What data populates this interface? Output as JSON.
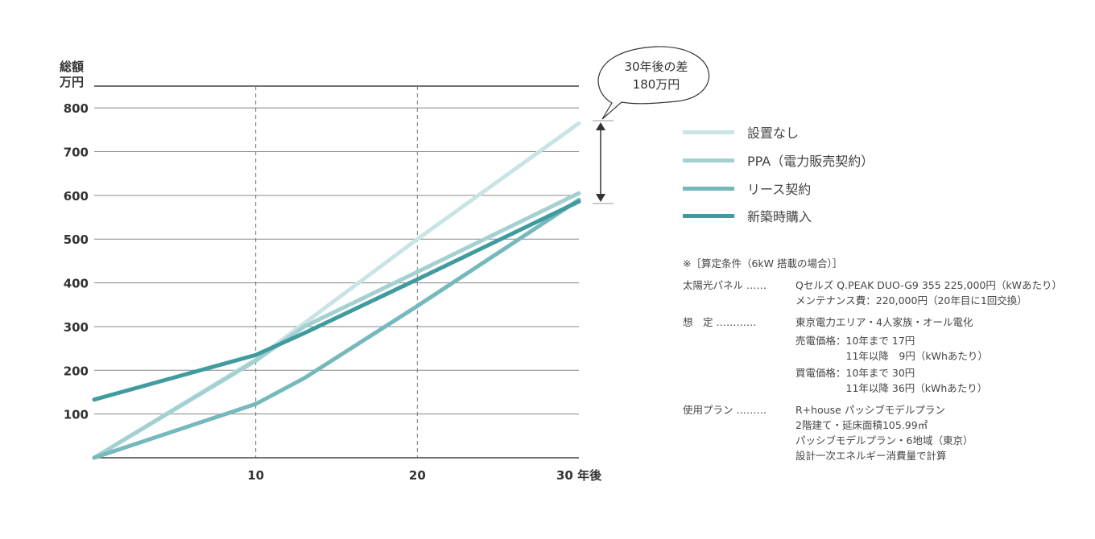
{
  "chart_data": {
    "type": "line",
    "ylabel": "総額\n万円",
    "ylabel_lines": [
      "総額",
      "万円"
    ],
    "xlabel_suffix": "年後",
    "ylim": [
      0,
      850
    ],
    "xlim": [
      0,
      30
    ],
    "yticks": [
      100,
      200,
      300,
      400,
      500,
      600,
      700,
      800
    ],
    "xticks": [
      {
        "v": 10,
        "label": "10"
      },
      {
        "v": 20,
        "label": "20"
      },
      {
        "v": 30,
        "label": "30"
      }
    ],
    "grid": "horizontal",
    "legend_position": "right",
    "series": [
      {
        "name": "設置なし",
        "color": "#c9e4e4",
        "points": [
          [
            0,
            0
          ],
          [
            10,
            225
          ],
          [
            20,
            500
          ],
          [
            30,
            765
          ]
        ]
      },
      {
        "name": "PPA（電力販売契約）",
        "color": "#a4d0d2",
        "points": [
          [
            0,
            0
          ],
          [
            10,
            222
          ],
          [
            13,
            300
          ],
          [
            20,
            425
          ],
          [
            30,
            605
          ]
        ]
      },
      {
        "name": "リース契約",
        "color": "#76b9bc",
        "points": [
          [
            0,
            0
          ],
          [
            10,
            123
          ],
          [
            13,
            182
          ],
          [
            20,
            347
          ],
          [
            30,
            590
          ]
        ]
      },
      {
        "name": "新築時購入",
        "color": "#3f9b9e",
        "points": [
          [
            0,
            133
          ],
          [
            10,
            235
          ],
          [
            13,
            285
          ],
          [
            20,
            408
          ],
          [
            30,
            586
          ]
        ]
      }
    ],
    "annotation": {
      "lines": [
        "30年後の差",
        "180万円"
      ],
      "from": 765,
      "to": 586
    }
  },
  "notes": {
    "title": "※［算定条件（6kW 搭載の場合）］",
    "rows": [
      {
        "label": "太陽光パネル",
        "dots": "……",
        "lines": [
          "Qセルズ Q.PEAK DUO-G9 355  225,000円（kWあたり）",
          "メンテナンス費：220,000円（20年目に1回交換）"
        ]
      },
      {
        "label": "想　定",
        "dots": "…………",
        "lines": [
          "東京電力エリア・4人家族・オール電化",
          "売電価格：10年まで 17円",
          "　　　　　11年以降　9円（kWhあたり）",
          "買電価格：10年まで 30円",
          "　　　　　11年以降 36円（kWhあたり）"
        ]
      },
      {
        "label": "使用プラン",
        "dots": "………",
        "lines": [
          "R+house パッシブモデルプラン",
          "2階建て・延床面積105.99㎡",
          "パッシブモデルプラン・6地域（東京）",
          "設計一次エネルギー消費量で計算"
        ]
      }
    ]
  }
}
